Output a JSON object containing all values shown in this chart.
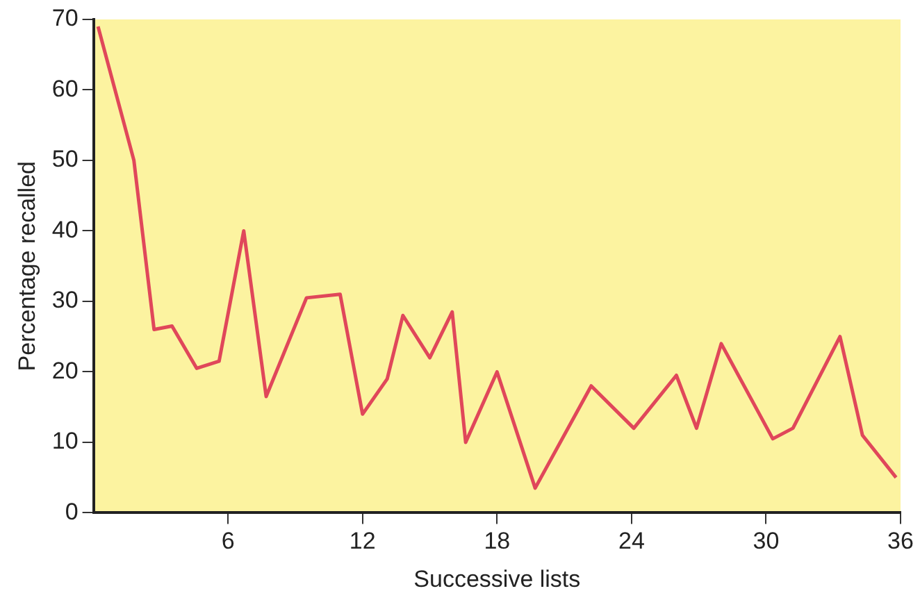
{
  "chart_data": {
    "type": "line",
    "xlabel": "Successive lists",
    "ylabel": "Percentage recalled",
    "x": [
      0.2,
      1.8,
      2.7,
      3.5,
      4.6,
      5.6,
      6.7,
      7.7,
      9.5,
      11,
      12,
      13.1,
      13.8,
      15,
      16,
      16.6,
      18,
      19.7,
      22.2,
      24.1,
      26,
      26.9,
      28,
      30.3,
      31.2,
      33.3,
      34.3,
      35.8
    ],
    "series": [
      {
        "color": "#e0475a",
        "values": [
          69,
          50,
          26,
          26.5,
          20.5,
          21.5,
          40,
          16.5,
          30.5,
          31,
          14,
          19,
          28,
          22,
          28.5,
          10,
          20,
          3.5,
          18,
          12,
          19.5,
          12,
          24,
          10.5,
          12,
          25,
          11,
          5
        ]
      }
    ],
    "xlim": [
      0,
      36
    ],
    "xticks": [
      6,
      12,
      18,
      24,
      30,
      36
    ],
    "ylim": [
      0,
      70
    ],
    "yticks": [
      0,
      10,
      20,
      30,
      40,
      50,
      60,
      70
    ],
    "grid": false,
    "legend": false,
    "marker": "none",
    "line_style": "solid"
  }
}
